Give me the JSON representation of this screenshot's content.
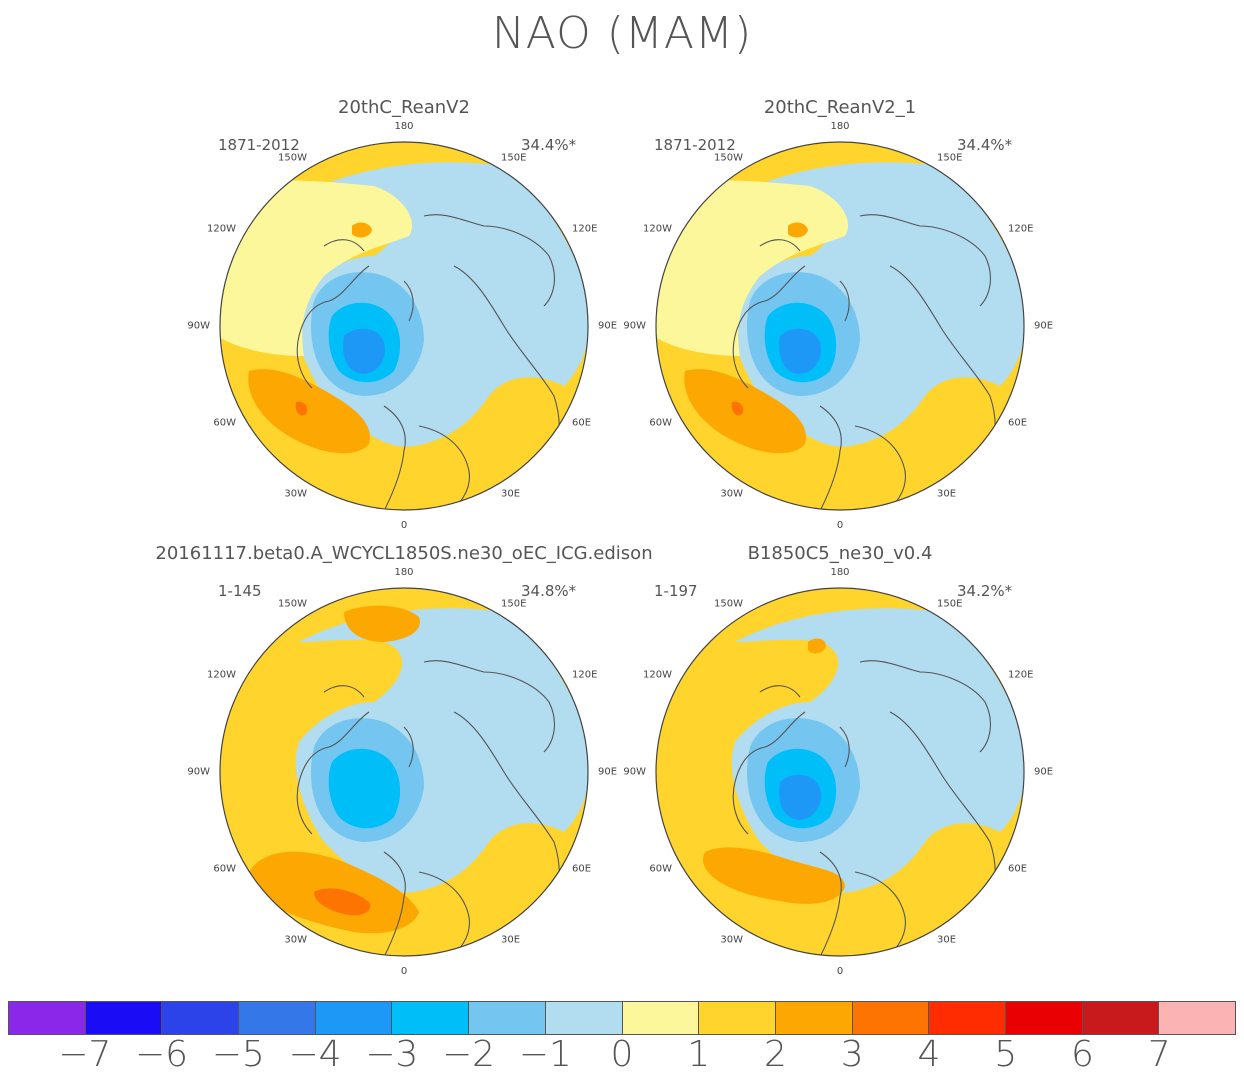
{
  "title": "NAO (MAM)",
  "colorbar": {
    "colors": [
      "#8a27e8",
      "#1a0cf4",
      "#2d43ea",
      "#3377e8",
      "#1e98f6",
      "#00bff8",
      "#74c6f0",
      "#b2dcf0",
      "#fbf79a",
      "#fed42d",
      "#fda802",
      "#fe7402",
      "#fe2c00",
      "#e80002",
      "#c81a1d",
      "#fcb3b3"
    ],
    "labels": [
      "−7",
      "−6",
      "−5",
      "−4",
      "−3",
      "−2",
      "−1",
      "0",
      "1",
      "2",
      "3",
      "4",
      "5",
      "6",
      "7"
    ]
  },
  "lon_labels": [
    "180",
    "150E",
    "120E",
    "90E",
    "60E",
    "30E",
    "0",
    "30W",
    "60W",
    "90W",
    "120W",
    "150W"
  ],
  "panels": [
    {
      "title": "20thC_ReanV2",
      "period": "1871-2012",
      "pct": "34.4%*"
    },
    {
      "title": "20thC_ReanV2_1",
      "period": "1871-2012",
      "pct": "34.4%*"
    },
    {
      "title": "20161117.beta0.A_WCYCL1850S.ne30_oEC_ICG.edison",
      "period": "1-145",
      "pct": "34.8%*"
    },
    {
      "title": "B1850C5_ne30_v0.4",
      "period": "1-197",
      "pct": "34.2%*"
    }
  ]
}
